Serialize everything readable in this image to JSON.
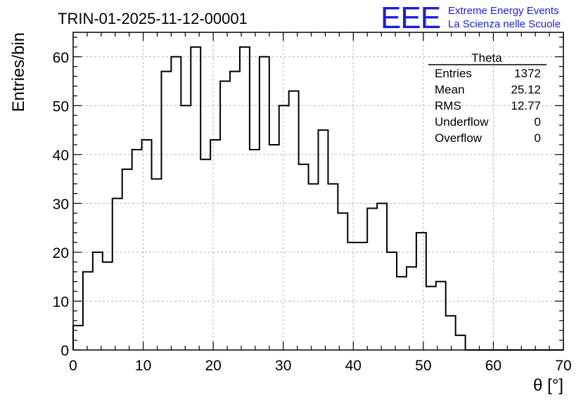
{
  "header": {
    "title": "TRIN-01-2025-11-12-00001"
  },
  "logo": {
    "mark": "EEE",
    "line1": "Extreme Energy Events",
    "line2": "La Scienza nelle Scuole",
    "color": "#1d1dd8"
  },
  "stats": {
    "name": "Theta",
    "rows": [
      {
        "label": "Entries",
        "value": "1372"
      },
      {
        "label": "Mean",
        "value": "25.12"
      },
      {
        "label": "RMS",
        "value": "12.77"
      },
      {
        "label": "Underflow",
        "value": "0"
      },
      {
        "label": "Overflow",
        "value": "0"
      }
    ]
  },
  "chart_data": {
    "type": "bar",
    "style": "step-histogram",
    "title": "TRIN-01-2025-11-12-00001",
    "xlabel": "θ [°]",
    "ylabel": "Entries/bin",
    "xlim": [
      0,
      70
    ],
    "ylim": [
      0,
      65
    ],
    "bin_width": 1.4,
    "x_ticks": [
      0,
      10,
      20,
      30,
      40,
      50,
      60,
      70
    ],
    "y_ticks": [
      0,
      10,
      20,
      30,
      40,
      50,
      60
    ],
    "grid": true,
    "values": [
      5,
      16,
      20,
      18,
      31,
      37,
      41,
      43,
      35,
      57,
      60,
      50,
      62,
      39,
      43,
      55,
      57,
      62,
      41,
      60,
      42,
      50,
      53,
      38,
      34,
      45,
      34,
      28,
      22,
      22,
      29,
      30,
      20,
      15,
      17,
      24,
      13,
      14,
      7,
      3,
      0,
      0,
      0,
      0,
      0,
      0,
      0,
      0,
      0,
      0
    ]
  }
}
